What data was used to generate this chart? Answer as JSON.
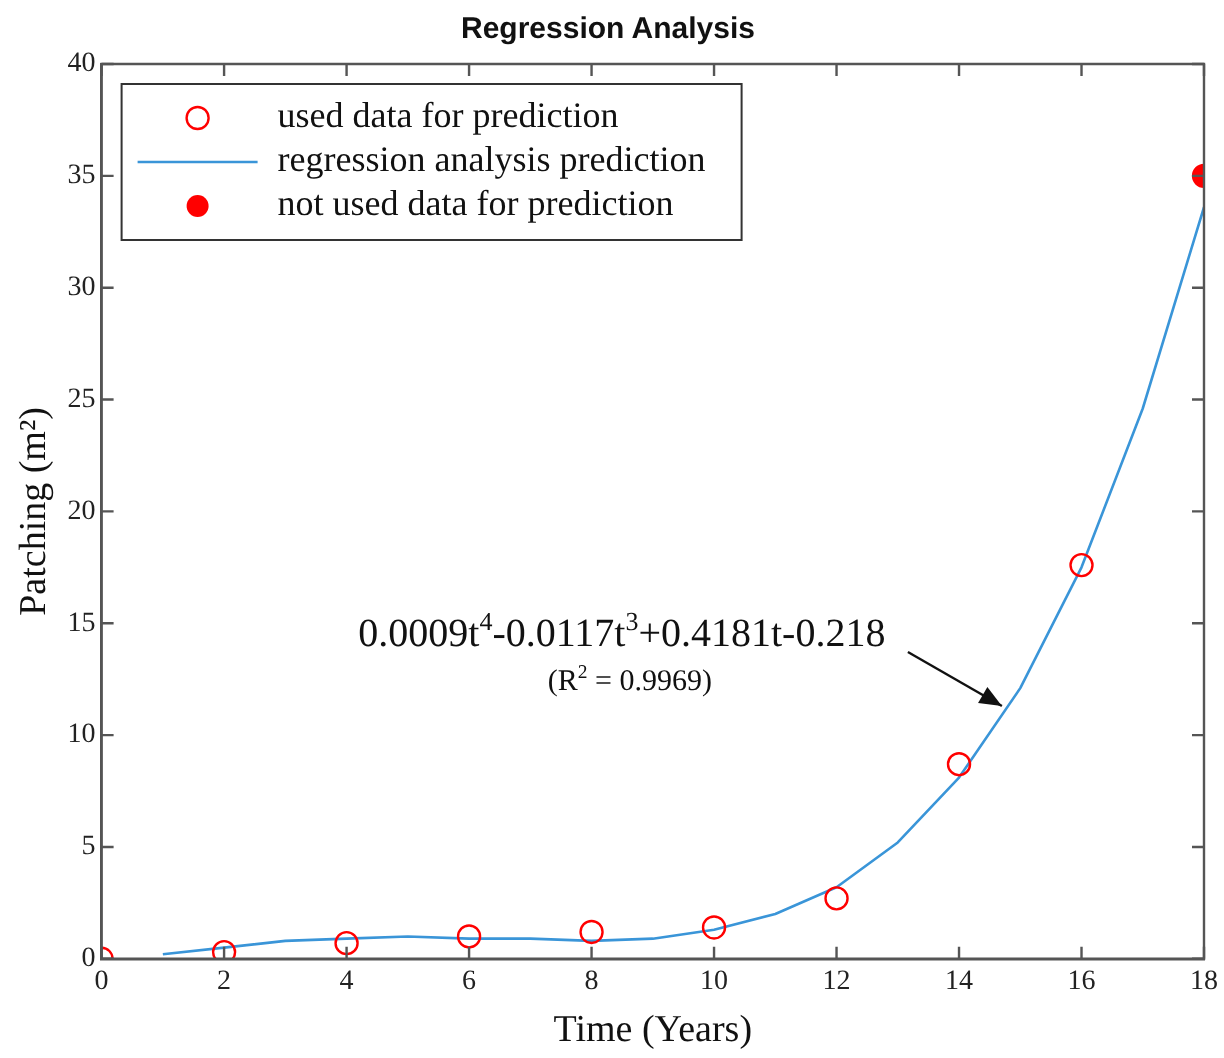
{
  "chart_data": {
    "type": "scatter",
    "title": "Regression Analysis",
    "xlabel": "Time (Years)",
    "ylabel": "Patching (m²)",
    "xlim": [
      0,
      18
    ],
    "xticks": [
      0,
      2,
      4,
      6,
      8,
      10,
      12,
      14,
      16,
      18
    ],
    "ylim": [
      0,
      40
    ],
    "yticks": [
      0,
      5,
      10,
      15,
      20,
      25,
      30,
      35,
      40
    ],
    "grid": false,
    "legend": "top left",
    "series": [
      {
        "name": "used data for prediction",
        "marker": "circle",
        "color": "#ff0000",
        "x": [
          0,
          2,
          4,
          6,
          8,
          10,
          12,
          14,
          16
        ],
        "values": [
          0,
          0.3,
          0.7,
          1.0,
          1.2,
          1.4,
          2.7,
          8.7,
          17.6
        ]
      },
      {
        "name": "regression analysis prediction",
        "type": "line",
        "marker": "none",
        "color": "#3a95d8",
        "x": [
          1,
          2,
          3,
          4,
          5,
          6,
          7,
          8,
          9,
          10,
          11,
          12,
          13,
          14,
          15,
          16,
          17,
          18
        ],
        "values": [
          0.2,
          0.5,
          0.8,
          0.9,
          1.0,
          0.9,
          0.9,
          0.8,
          0.9,
          1.3,
          2.0,
          3.2,
          5.2,
          8.1,
          12.1,
          17.5,
          24.6,
          33.6
        ]
      },
      {
        "name": "not used data for prediction",
        "marker": "circle",
        "color": "#ff0000",
        "x": [
          18
        ],
        "values": [
          35
        ]
      }
    ],
    "annotations": [
      {
        "text": "0.0009t$^{4}$-0.0117t$^{3}$+0.4181t-0.218",
        "x": 14.7,
        "y": 11.3
      },
      "(R$^{2}$ = 0.9969)"
    ]
  }
}
